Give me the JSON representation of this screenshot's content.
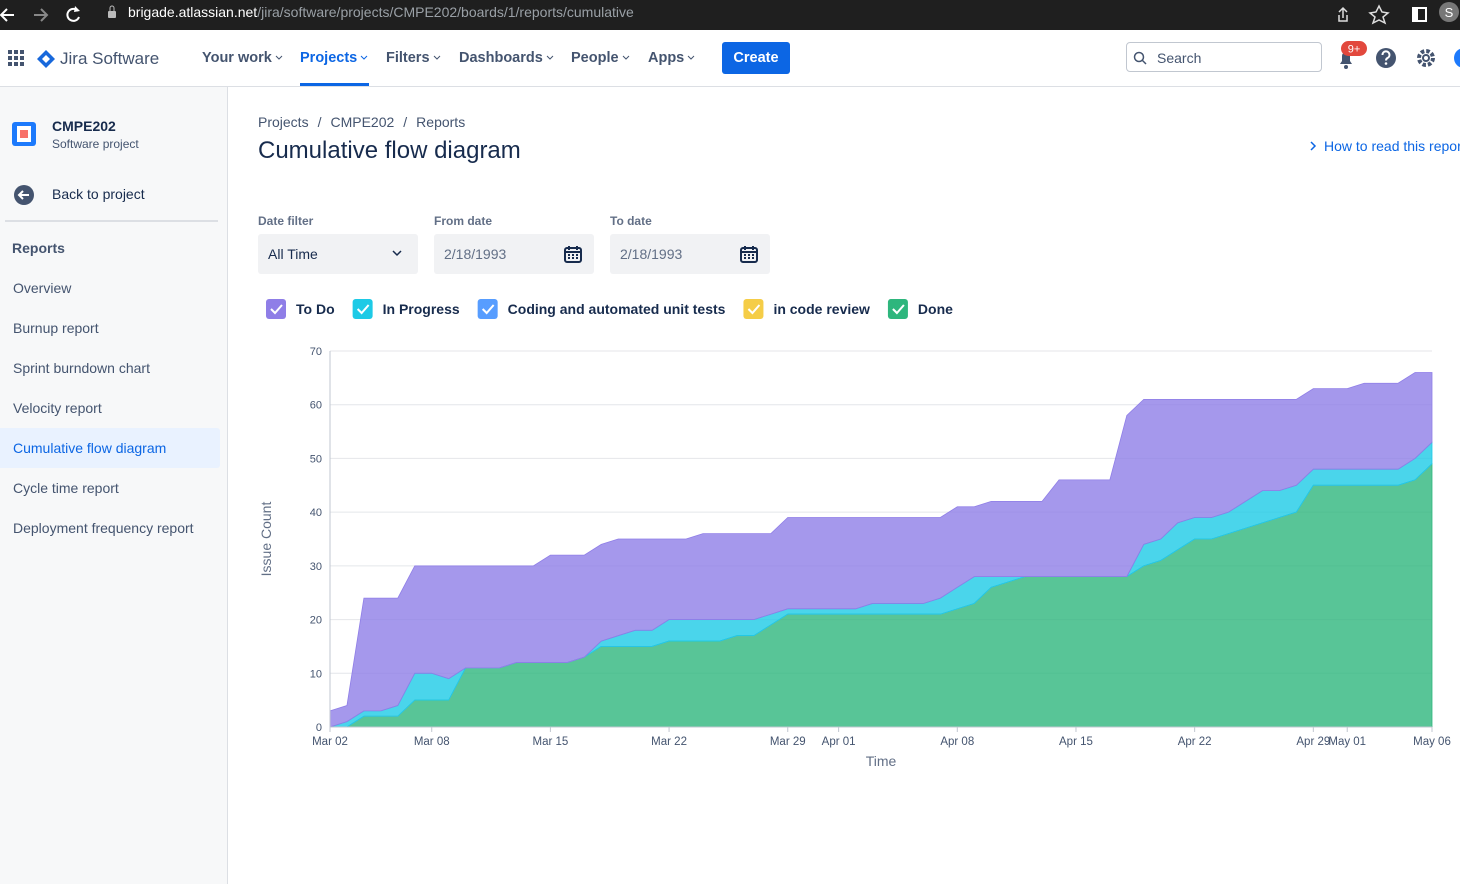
{
  "browser": {
    "host": "brigade.atlassian.net",
    "path": "/jira/software/projects/CMPE202/boards/1/reports/cumulative",
    "avatar": "S"
  },
  "nav": {
    "product": "Jira Software",
    "items": [
      "Your work",
      "Projects",
      "Filters",
      "Dashboards",
      "People",
      "Apps"
    ],
    "create": "Create",
    "search": "Search",
    "notifications": "9+"
  },
  "sidebar": {
    "project": "CMPE202",
    "project_type": "Software project",
    "back": "Back to project",
    "section": "Reports",
    "items": [
      "Overview",
      "Burnup report",
      "Sprint burndown chart",
      "Velocity report",
      "Cumulative flow diagram",
      "Cycle time report",
      "Deployment frequency report"
    ]
  },
  "breadcrumbs": [
    "Projects",
    "CMPE202",
    "Reports"
  ],
  "breadcrumb_separator": "/",
  "title": "Cumulative flow diagram",
  "help_link": "How to read this report",
  "filters": [
    {
      "label": "Date filter",
      "value": "All Time"
    },
    {
      "label": "From date",
      "value": "2/18/1993"
    },
    {
      "label": "To date",
      "value": "2/18/1993"
    }
  ],
  "chart_data": {
    "type": "area",
    "stacked": true,
    "grid": true,
    "x_label": "Time",
    "y_label": "Issue Count",
    "x": [
      "Mar 02",
      "Mar 03",
      "Mar 04",
      "Mar 05",
      "Mar 06",
      "Mar 07",
      "Mar 08",
      "Mar 09",
      "Mar 10",
      "Mar 11",
      "Mar 12",
      "Mar 13",
      "Mar 14",
      "Mar 15",
      "Mar 16",
      "Mar 17",
      "Mar 18",
      "Mar 19",
      "Mar 20",
      "Mar 21",
      "Mar 22",
      "Mar 23",
      "Mar 24",
      "Mar 25",
      "Mar 26",
      "Mar 27",
      "Mar 28",
      "Mar 29",
      "Mar 30",
      "Mar 31",
      "Apr 01",
      "Apr 02",
      "Apr 03",
      "Apr 04",
      "Apr 05",
      "Apr 06",
      "Apr 07",
      "Apr 08",
      "Apr 09",
      "Apr 10",
      "Apr 11",
      "Apr 12",
      "Apr 13",
      "Apr 14",
      "Apr 15",
      "Apr 16",
      "Apr 17",
      "Apr 18",
      "Apr 19",
      "Apr 20",
      "Apr 21",
      "Apr 22",
      "Apr 23",
      "Apr 24",
      "Apr 25",
      "Apr 26",
      "Apr 27",
      "Apr 28",
      "Apr 29",
      "Apr 30",
      "May 01",
      "May 02",
      "May 03",
      "May 04",
      "May 05",
      "May 06"
    ],
    "xlim": [
      "Mar 02",
      "May 06"
    ],
    "xticks": [
      "Mar 02",
      "Mar 08",
      "Mar 15",
      "Mar 22",
      "Mar 29",
      "Apr 01",
      "Apr 08",
      "Apr 15",
      "Apr 22",
      "Apr 29",
      "May 01",
      "May 06"
    ],
    "ylim": [
      0,
      70
    ],
    "yticks": [
      0,
      10,
      20,
      30,
      40,
      50,
      60,
      70
    ],
    "series": [
      {
        "name": "To Do",
        "color": "#8f7ee7",
        "values": [
          3,
          3,
          21,
          21,
          20,
          20,
          20,
          21,
          19,
          19,
          19,
          18,
          18,
          20,
          20,
          19,
          18,
          18,
          17,
          17,
          15,
          15,
          16,
          16,
          16,
          16,
          15,
          17,
          17,
          17,
          17,
          17,
          16,
          16,
          16,
          16,
          15,
          15,
          13,
          14,
          14,
          14,
          14,
          18,
          18,
          18,
          18,
          30,
          27,
          26,
          23,
          22,
          22,
          21,
          19,
          17,
          17,
          16,
          15,
          15,
          15,
          16,
          16,
          16,
          16,
          13
        ]
      },
      {
        "name": "In Progress",
        "color": "#1dcae6",
        "values": [
          0,
          1,
          1,
          1,
          2,
          5,
          5,
          4,
          0,
          0,
          0,
          0,
          0,
          0,
          0,
          0,
          1,
          2,
          3,
          3,
          4,
          4,
          4,
          4,
          3,
          3,
          2,
          1,
          1,
          1,
          1,
          1,
          2,
          2,
          2,
          2,
          3,
          4,
          5,
          2,
          1,
          0,
          0,
          0,
          0,
          0,
          0,
          0,
          4,
          4,
          5,
          4,
          4,
          4,
          5,
          6,
          5,
          5,
          3,
          3,
          3,
          3,
          3,
          3,
          4,
          4
        ]
      },
      {
        "name": "Coding and automated unit tests",
        "color": "#579dff",
        "values": [
          0,
          0,
          0,
          0,
          0,
          0,
          0,
          0,
          0,
          0,
          0,
          0,
          0,
          0,
          0,
          0,
          0,
          0,
          0,
          0,
          0,
          0,
          0,
          0,
          0,
          0,
          0,
          0,
          0,
          0,
          0,
          0,
          0,
          0,
          0,
          0,
          0,
          0,
          0,
          0,
          0,
          0,
          0,
          0,
          0,
          0,
          0,
          0,
          0,
          0,
          0,
          0,
          0,
          0,
          0,
          0,
          0,
          0,
          0,
          0,
          0,
          0,
          0,
          0,
          0,
          0
        ]
      },
      {
        "name": "in code review",
        "color": "#f5cd47",
        "values": [
          0,
          0,
          0,
          0,
          0,
          0,
          0,
          0,
          0,
          0,
          0,
          0,
          0,
          0,
          0,
          0,
          0,
          0,
          0,
          0,
          0,
          0,
          0,
          0,
          0,
          0,
          0,
          0,
          0,
          0,
          0,
          0,
          0,
          0,
          0,
          0,
          0,
          0,
          0,
          0,
          0,
          0,
          0,
          0,
          0,
          0,
          0,
          0,
          0,
          0,
          0,
          0,
          0,
          0,
          0,
          0,
          0,
          0,
          0,
          0,
          0,
          0,
          0,
          0,
          0,
          0
        ]
      },
      {
        "name": "Done",
        "color": "#2eb67d",
        "values": [
          0,
          0,
          2,
          2,
          2,
          5,
          5,
          5,
          11,
          11,
          11,
          12,
          12,
          12,
          12,
          13,
          15,
          15,
          15,
          15,
          16,
          16,
          16,
          16,
          17,
          17,
          19,
          21,
          21,
          21,
          21,
          21,
          21,
          21,
          21,
          21,
          21,
          22,
          23,
          26,
          27,
          28,
          28,
          28,
          28,
          28,
          28,
          28,
          30,
          31,
          33,
          35,
          35,
          36,
          37,
          38,
          39,
          40,
          45,
          45,
          45,
          45,
          45,
          45,
          46,
          49
        ]
      }
    ]
  }
}
